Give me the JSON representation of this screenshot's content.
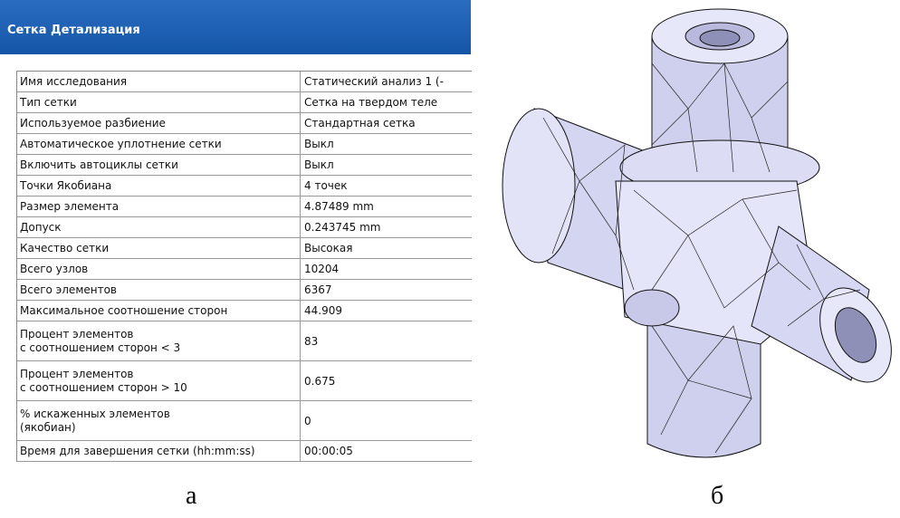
{
  "header": {
    "title": "Сетка Детализация"
  },
  "table": {
    "rows": [
      [
        "Имя исследования",
        "Статический анализ 1 (-"
      ],
      [
        "Тип сетки",
        "Сетка на твердом теле"
      ],
      [
        "Используемое разбиение",
        "Стандартная сетка"
      ],
      [
        "Автоматическое уплотнение сетки",
        "Выкл"
      ],
      [
        "Включить автоциклы сетки",
        "Выкл"
      ],
      [
        "Точки Якобиана",
        "4 точек"
      ],
      [
        "Размер элемента",
        "4.87489 mm"
      ],
      [
        "Допуск",
        "0.243745 mm"
      ],
      [
        "Качество сетки",
        "Высокая"
      ],
      [
        "Всего узлов",
        "10204"
      ],
      [
        "Всего элементов",
        "6367"
      ],
      [
        "Максимальное соотношение сторон",
        "44.909"
      ],
      [
        "Процент элементов\nс соотношением сторон < 3",
        "83"
      ],
      [
        "Процент элементов\nс соотношением сторон > 10",
        "0.675"
      ],
      [
        "% искаженных элементов\n(якобиан)",
        "0"
      ],
      [
        "Время для завершения сетки (hh:mm:ss)",
        "00:00:05"
      ]
    ]
  },
  "captions": [
    "а",
    "б"
  ]
}
